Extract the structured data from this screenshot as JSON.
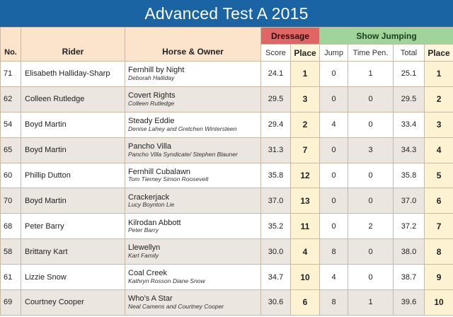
{
  "title": "Advanced Test A 2015",
  "groups": {
    "dressage": "Dressage",
    "show_jumping": "Show Jumping"
  },
  "columns": {
    "no": "No.",
    "rider": "Rider",
    "horse_owner": "Horse & Owner",
    "score": "Score",
    "dressage_place": "Place",
    "jump": "Jump",
    "time_pen": "Time Pen.",
    "total": "Total",
    "place": "Place"
  },
  "rows": [
    {
      "no": "71",
      "rider": "Elisabeth Halliday-Sharp",
      "horse": "Fernhill by Night",
      "owner": "Deborah Halliday",
      "score": "24.1",
      "dplace": "1",
      "jump": "0",
      "time": "1",
      "total": "25.1",
      "place": "1"
    },
    {
      "no": "62",
      "rider": "Colleen Rutledge",
      "horse": "Covert Rights",
      "owner": "Colleen Rutledge",
      "score": "29.5",
      "dplace": "3",
      "jump": "0",
      "time": "0",
      "total": "29.5",
      "place": "2"
    },
    {
      "no": "54",
      "rider": "Boyd Martin",
      "horse": "Steady Eddie",
      "owner": "Denise Lahey and Gretchen Wintersteen",
      "score": "29.4",
      "dplace": "2",
      "jump": "4",
      "time": "0",
      "total": "33.4",
      "place": "3"
    },
    {
      "no": "65",
      "rider": "Boyd Martin",
      "horse": "Pancho Villa",
      "owner": "Pancho Villa Syndicate/ Stephen Blauner",
      "score": "31.3",
      "dplace": "7",
      "jump": "0",
      "time": "3",
      "total": "34.3",
      "place": "4"
    },
    {
      "no": "60",
      "rider": "Phillip Dutton",
      "horse": "Fernhill Cubalawn",
      "owner": "Tom Tierney Simon Roosevelt",
      "score": "35.8",
      "dplace": "12",
      "jump": "0",
      "time": "0",
      "total": "35.8",
      "place": "5"
    },
    {
      "no": "70",
      "rider": "Boyd Martin",
      "horse": "Crackerjack",
      "owner": "Lucy Boynton Lie",
      "score": "37.0",
      "dplace": "13",
      "jump": "0",
      "time": "0",
      "total": "37.0",
      "place": "6"
    },
    {
      "no": "68",
      "rider": "Peter Barry",
      "horse": "Kilrodan Abbott",
      "owner": "Peter Barry",
      "score": "35.2",
      "dplace": "11",
      "jump": "0",
      "time": "2",
      "total": "37.2",
      "place": "7"
    },
    {
      "no": "58",
      "rider": "Brittany Kart",
      "horse": "Llewellyn",
      "owner": "Kart Family",
      "score": "30.0",
      "dplace": "4",
      "jump": "8",
      "time": "0",
      "total": "38.0",
      "place": "8"
    },
    {
      "no": "61",
      "rider": "Lizzie Snow",
      "horse": "Coal Creek",
      "owner": "Kathryn Rosson Diane Snow",
      "score": "34.7",
      "dplace": "10",
      "jump": "4",
      "time": "0",
      "total": "38.7",
      "place": "9"
    },
    {
      "no": "69",
      "rider": "Courtney Cooper",
      "horse": "Who's A Star",
      "owner": "Neal Camens and Courtney Cooper",
      "score": "30.6",
      "dplace": "6",
      "jump": "8",
      "time": "1",
      "total": "39.6",
      "place": "10"
    }
  ]
}
